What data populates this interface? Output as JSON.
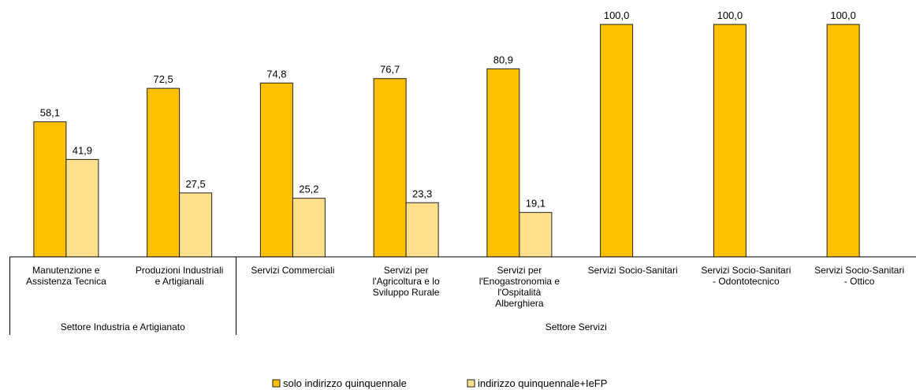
{
  "chart_data": {
    "type": "bar",
    "categories": [
      "Manutenzione e\nAssistenza Tecnica",
      "Produzioni Industriali\ne Artigianali",
      "Servizi Commerciali",
      "Servizi per\nl'Agricoltura e lo\nSviluppo Rurale",
      "Servizi per\nl'Enogastronomia e\nl'Ospitalità\nAlberghiera",
      "Servizi Socio-Sanitari",
      "Servizi Socio-Sanitari\n- Odontotecnico",
      "Servizi Socio-Sanitari\n- Ottico"
    ],
    "groups": [
      {
        "name": "Settore Industria e Artigianato",
        "count": 2
      },
      {
        "name": "Settore Servizi",
        "count": 6
      }
    ],
    "series": [
      {
        "name": "solo indirizzo quinquennale",
        "color": "#FFC000",
        "values": [
          58.1,
          72.5,
          74.8,
          76.7,
          80.9,
          100,
          100,
          100
        ],
        "value_labels": [
          "58,1",
          "72,5",
          "74,8",
          "76,7",
          "80,9",
          "100,0",
          "100,0",
          "100,0"
        ]
      },
      {
        "name": "indirizzo quinquennale+IeFP",
        "color": "#FFE08C",
        "values": [
          41.9,
          27.5,
          25.2,
          23.3,
          19.1,
          null,
          null,
          null
        ],
        "value_labels": [
          "41,9",
          "27,5",
          "25,2",
          "23,3",
          "19,1",
          null,
          null,
          null
        ]
      }
    ],
    "ylim": [
      0,
      100
    ],
    "grid": false,
    "legend": "bottom"
  }
}
